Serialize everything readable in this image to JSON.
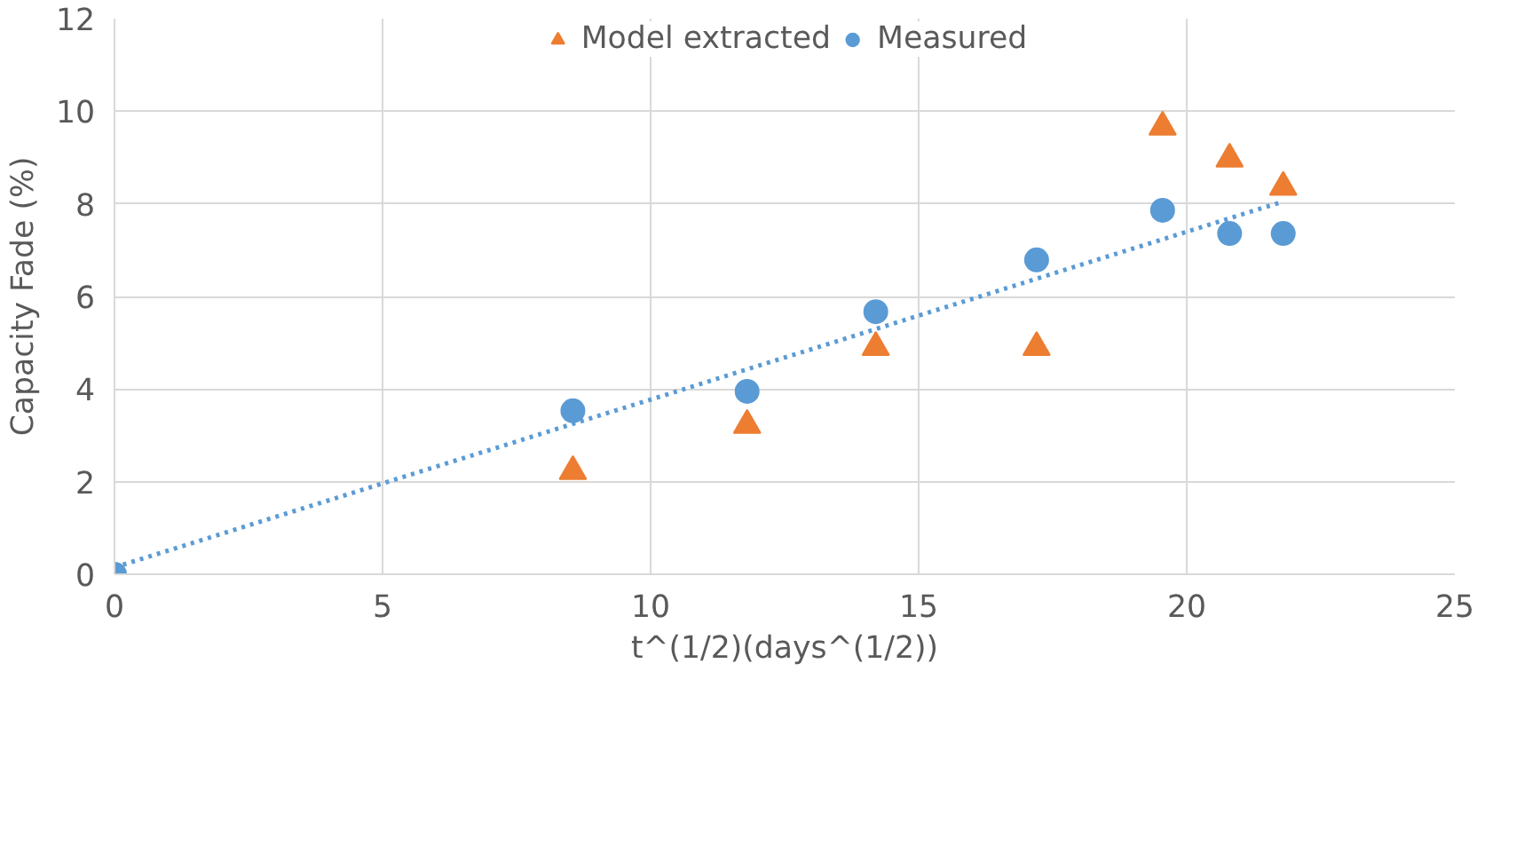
{
  "chart_data": {
    "type": "scatter",
    "xlabel": "t^(1/2)(days^(1/2))",
    "ylabel": "Capacity Fade (%)",
    "xlim": [
      0,
      25
    ],
    "xticks": [
      0,
      5,
      10,
      15,
      20,
      25
    ],
    "ylim": [
      0,
      12
    ],
    "yticks": [
      0,
      2,
      4,
      6,
      8,
      10,
      12
    ],
    "grid": true,
    "legend": "top",
    "series": [
      {
        "name": "Model extracted",
        "color": "#ed7d31",
        "marker": "triangle",
        "x": [
          8.55,
          11.8,
          14.2,
          17.2,
          19.55,
          20.8,
          21.8
        ],
        "values": [
          2.22,
          3.22,
          4.9,
          4.9,
          9.66,
          8.97,
          8.36
        ]
      },
      {
        "name": "Measured",
        "color": "#5b9bd5",
        "marker": "circle",
        "x": [
          0,
          8.55,
          11.8,
          14.2,
          17.2,
          19.55,
          20.8,
          21.8
        ],
        "values": [
          0,
          3.53,
          3.95,
          5.67,
          6.79,
          7.86,
          7.36,
          7.36
        ]
      },
      {
        "type": "line",
        "color": "#5b9bd5",
        "line_style": "dotted",
        "marker": "none",
        "x": [
          0,
          21.8
        ],
        "values": [
          0.15,
          8.05
        ]
      }
    ]
  }
}
